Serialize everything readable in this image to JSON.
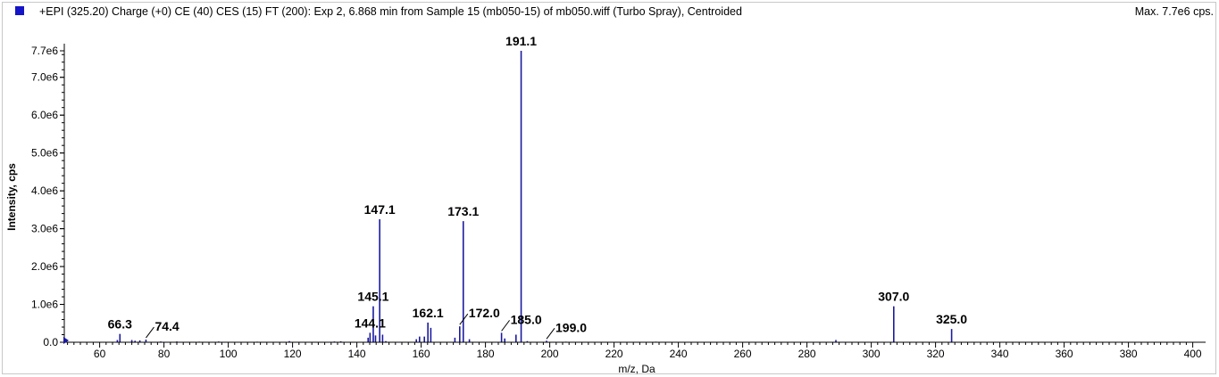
{
  "header": {
    "title": "+EPI (325.20) Charge (+0) CE (40) CES (15) FT (200): Exp 2, 6.868 min from Sample 15 (mb050-15) of mb050.wiff (Turbo Spray), Centroided",
    "max_label": "Max. 7.7e6 cps.",
    "legend_color": "#1414c8"
  },
  "chart_data": {
    "type": "bar",
    "title": "+EPI (325.20) Charge (+0) CE (40) CES (15) FT (200): Exp 2, 6.868 min from Sample 15 (mb050-15) of mb050.wiff (Turbo Spray), Centroided",
    "xlabel": "m/z, Da",
    "ylabel": "Intensity, cps",
    "xlim": [
      49,
      404
    ],
    "ylim": [
      0,
      7700000.0
    ],
    "x_ticks": [
      60,
      80,
      100,
      120,
      140,
      160,
      180,
      200,
      220,
      240,
      260,
      280,
      300,
      320,
      340,
      360,
      380,
      400
    ],
    "y_ticks": [
      {
        "value": 0,
        "label": "0.0"
      },
      {
        "value": 1000000,
        "label": "1.0e6"
      },
      {
        "value": 2000000,
        "label": "2.0e6"
      },
      {
        "value": 3000000,
        "label": "3.0e6"
      },
      {
        "value": 4000000,
        "label": "4.0e6"
      },
      {
        "value": 5000000,
        "label": "5.0e6"
      },
      {
        "value": 6000000,
        "label": "6.0e6"
      },
      {
        "value": 7000000,
        "label": "7.0e6"
      },
      {
        "value": 7700000,
        "label": "7.7e6"
      }
    ],
    "color": "#1a1aa0",
    "peaks": [
      {
        "mz": 65.5,
        "intensity": 60000
      },
      {
        "mz": 66.3,
        "intensity": 220000
      },
      {
        "mz": 70.0,
        "intensity": 60000
      },
      {
        "mz": 71.0,
        "intensity": 40000
      },
      {
        "mz": 72.5,
        "intensity": 50000
      },
      {
        "mz": 74.4,
        "intensity": 70000
      },
      {
        "mz": 79.0,
        "intensity": 20000
      },
      {
        "mz": 84.0,
        "intensity": 20000
      },
      {
        "mz": 91.0,
        "intensity": 15000
      },
      {
        "mz": 97.0,
        "intensity": 20000
      },
      {
        "mz": 109.0,
        "intensity": 15000
      },
      {
        "mz": 119.0,
        "intensity": 30000
      },
      {
        "mz": 133.0,
        "intensity": 20000
      },
      {
        "mz": 135.0,
        "intensity": 25000
      },
      {
        "mz": 143.5,
        "intensity": 120000
      },
      {
        "mz": 144.1,
        "intensity": 250000
      },
      {
        "mz": 145.1,
        "intensity": 950000
      },
      {
        "mz": 145.8,
        "intensity": 180000
      },
      {
        "mz": 147.1,
        "intensity": 3250000
      },
      {
        "mz": 148.0,
        "intensity": 200000
      },
      {
        "mz": 149.0,
        "intensity": 30000
      },
      {
        "mz": 158.5,
        "intensity": 80000
      },
      {
        "mz": 159.5,
        "intensity": 150000
      },
      {
        "mz": 161.0,
        "intensity": 150000
      },
      {
        "mz": 162.1,
        "intensity": 520000
      },
      {
        "mz": 163.0,
        "intensity": 380000
      },
      {
        "mz": 170.5,
        "intensity": 120000
      },
      {
        "mz": 172.0,
        "intensity": 420000
      },
      {
        "mz": 173.1,
        "intensity": 3200000
      },
      {
        "mz": 175.0,
        "intensity": 80000
      },
      {
        "mz": 185.0,
        "intensity": 250000
      },
      {
        "mz": 186.0,
        "intensity": 100000
      },
      {
        "mz": 189.5,
        "intensity": 200000
      },
      {
        "mz": 191.1,
        "intensity": 7700000
      },
      {
        "mz": 193.0,
        "intensity": 30000
      },
      {
        "mz": 199.0,
        "intensity": 40000
      },
      {
        "mz": 205.0,
        "intensity": 15000
      },
      {
        "mz": 233.0,
        "intensity": 15000
      },
      {
        "mz": 289.0,
        "intensity": 60000
      },
      {
        "mz": 307.0,
        "intensity": 950000
      },
      {
        "mz": 325.0,
        "intensity": 350000
      }
    ],
    "annotations": [
      {
        "text": "191.1",
        "mz": 191.1,
        "intensity": 7700000,
        "leader": false
      },
      {
        "text": "147.1",
        "mz": 147.1,
        "intensity": 3250000,
        "leader": false
      },
      {
        "text": "173.1",
        "mz": 173.1,
        "intensity": 3200000,
        "leader": false
      },
      {
        "text": "145.1",
        "mz": 145.1,
        "intensity": 950000,
        "leader": false
      },
      {
        "text": "307.0",
        "mz": 307.0,
        "intensity": 950000,
        "leader": false
      },
      {
        "text": "162.1",
        "mz": 162.1,
        "intensity": 520000,
        "leader": false
      },
      {
        "text": "325.0",
        "mz": 325.0,
        "intensity": 350000,
        "leader": false
      },
      {
        "text": "66.3",
        "mz": 66.3,
        "intensity": 220000,
        "leader": false
      },
      {
        "text": "144.1",
        "mz": 144.1,
        "intensity": 250000,
        "leader": false
      },
      {
        "text": "74.4",
        "mz": 74.4,
        "intensity": 70000,
        "leader": true
      },
      {
        "text": "172.0",
        "mz": 172.0,
        "intensity": 420000,
        "leader": true
      },
      {
        "text": "185.0",
        "mz": 185.0,
        "intensity": 250000,
        "leader": true
      },
      {
        "text": "199.0",
        "mz": 199.0,
        "intensity": 40000,
        "leader": true
      }
    ]
  }
}
